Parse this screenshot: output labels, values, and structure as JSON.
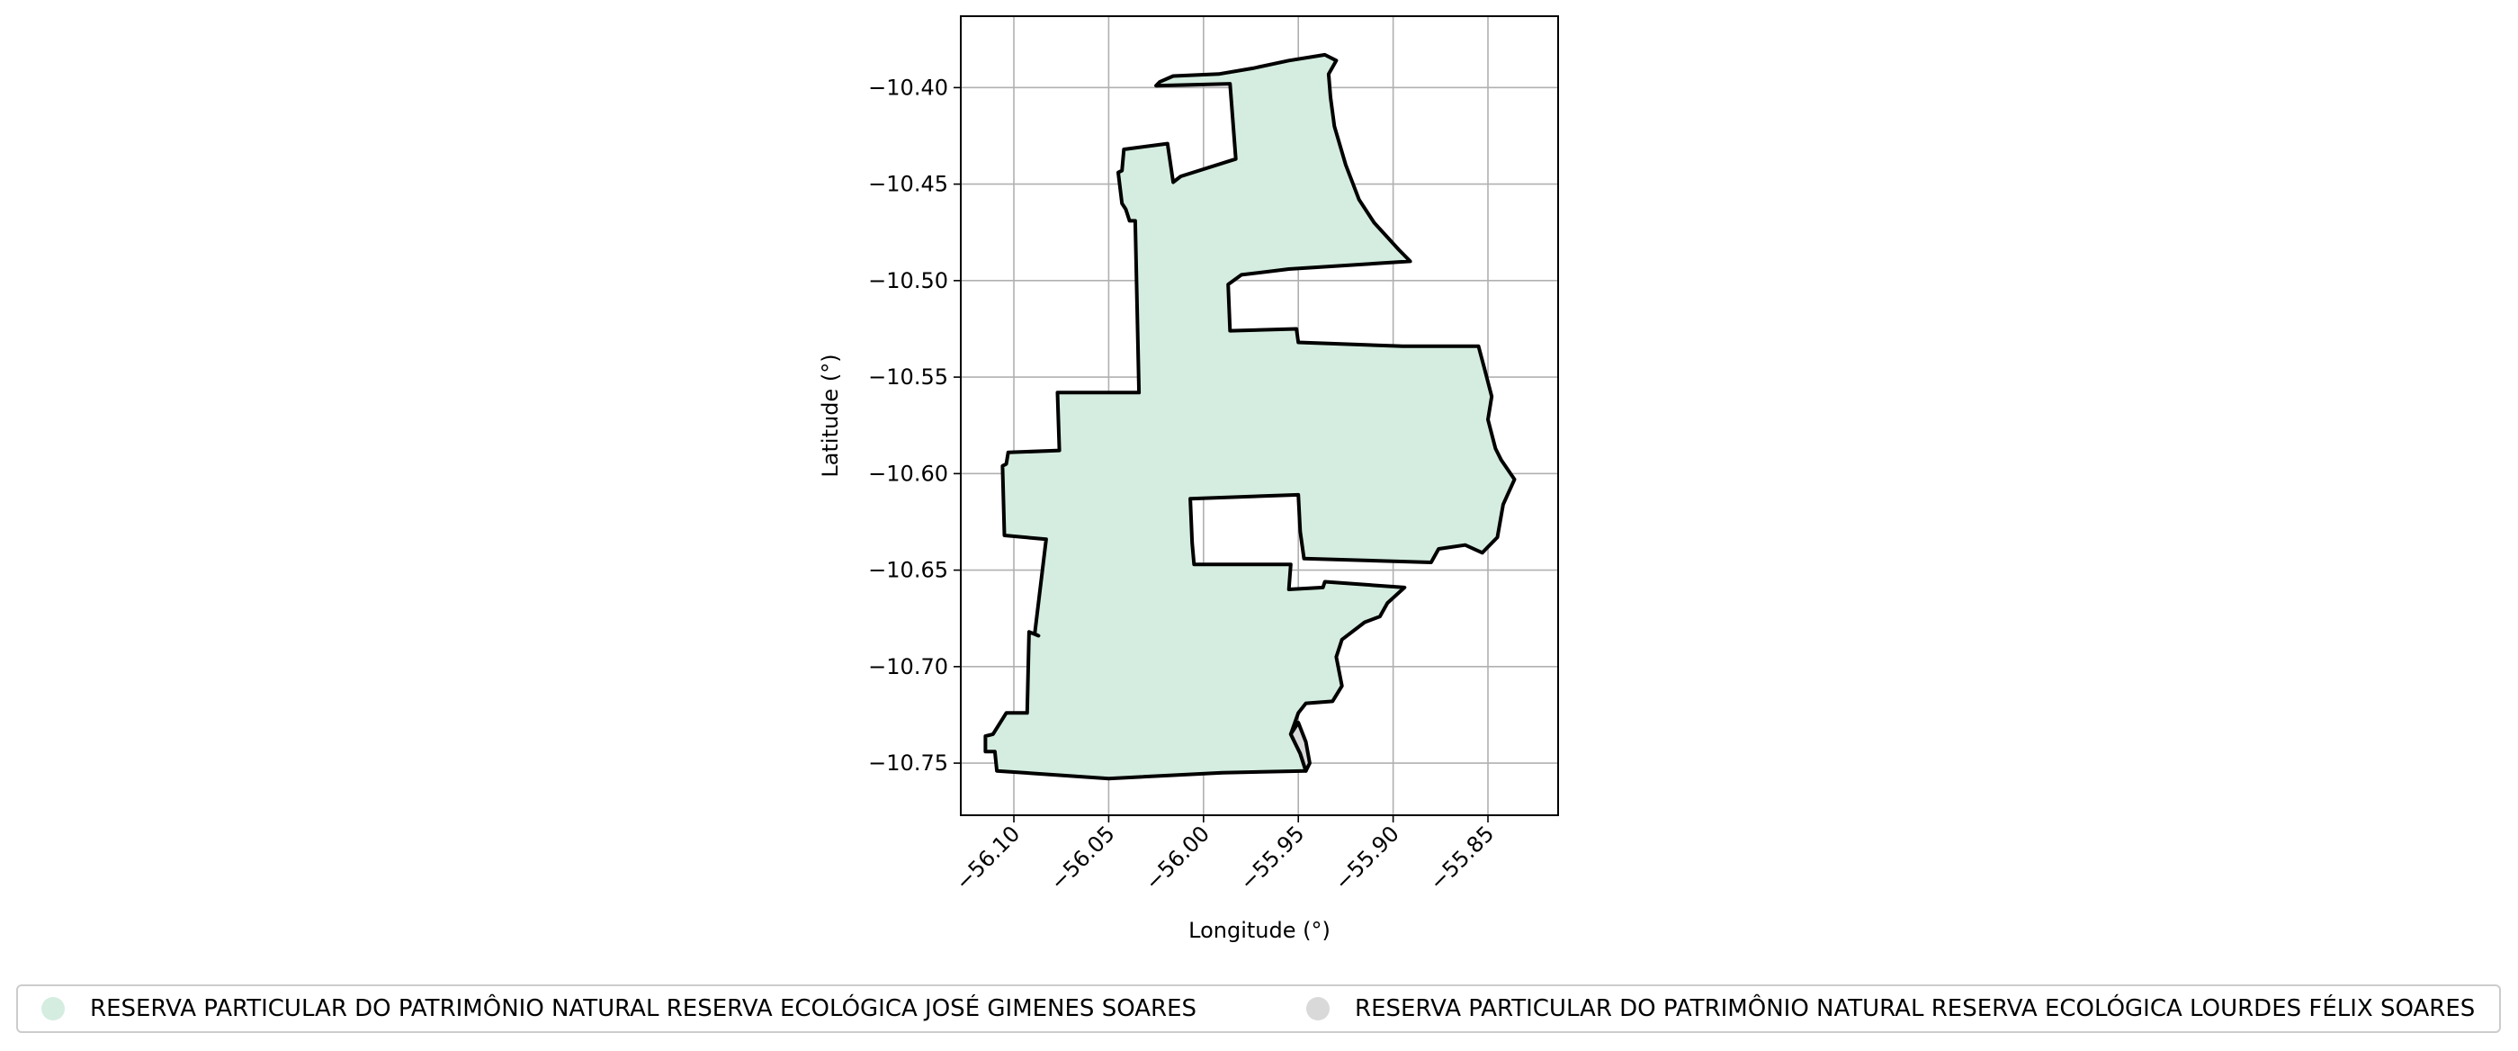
{
  "chart_data": {
    "type": "map",
    "title": "",
    "xlabel": "Longitude (°)",
    "ylabel": "Latitude (°)",
    "xlim": [
      -56.128,
      -55.813
    ],
    "ylim": [
      -10.777,
      -10.363
    ],
    "grid": true,
    "xticks": [
      -56.1,
      -56.05,
      -56.0,
      -55.95,
      -55.9,
      -55.85
    ],
    "xtick_labels": [
      "−56.10",
      "−56.05",
      "−56.00",
      "−55.95",
      "−55.90",
      "−55.85"
    ],
    "yticks": [
      -10.4,
      -10.45,
      -10.5,
      -10.55,
      -10.6,
      -10.65,
      -10.7,
      -10.75
    ],
    "ytick_labels": [
      "−10.40",
      "−10.45",
      "−10.50",
      "−10.55",
      "−10.60",
      "−10.65",
      "−10.70",
      "−10.75"
    ],
    "legend_position": "bottom",
    "series": [
      {
        "name": "RESERVA PARTICULAR DO PATRIMÔNIO NATURAL RESERVA ECOLÓGICA JOSÉ GIMENES SOARES",
        "color": "#d4ede0",
        "outline": "#000000",
        "lonlat": [
          [
            -56.025,
            -10.399
          ],
          [
            -55.986,
            -10.398
          ],
          [
            -55.983,
            -10.437
          ],
          [
            -56.012,
            -10.446
          ],
          [
            -56.016,
            -10.449
          ],
          [
            -56.019,
            -10.429
          ],
          [
            -56.042,
            -10.432
          ],
          [
            -56.043,
            -10.443
          ],
          [
            -56.045,
            -10.444
          ],
          [
            -56.043,
            -10.46
          ],
          [
            -56.041,
            -10.463
          ],
          [
            -56.039,
            -10.469
          ],
          [
            -56.036,
            -10.469
          ],
          [
            -56.034,
            -10.558
          ],
          [
            -56.077,
            -10.558
          ],
          [
            -56.076,
            -10.588
          ],
          [
            -56.103,
            -10.589
          ],
          [
            -56.104,
            -10.595
          ],
          [
            -56.106,
            -10.596
          ],
          [
            -56.105,
            -10.632
          ],
          [
            -56.083,
            -10.634
          ],
          [
            -56.089,
            -10.683
          ],
          [
            -56.087,
            -10.684
          ],
          [
            -56.092,
            -10.682
          ],
          [
            -56.093,
            -10.724
          ],
          [
            -56.104,
            -10.724
          ],
          [
            -56.111,
            -10.735
          ],
          [
            -56.115,
            -10.736
          ],
          [
            -56.115,
            -10.744
          ],
          [
            -56.11,
            -10.744
          ],
          [
            -56.109,
            -10.754
          ],
          [
            -56.05,
            -10.758
          ],
          [
            -55.99,
            -10.755
          ],
          [
            -55.946,
            -10.754
          ],
          [
            -55.949,
            -10.745
          ],
          [
            -55.954,
            -10.735
          ],
          [
            -55.95,
            -10.724
          ],
          [
            -55.946,
            -10.719
          ],
          [
            -55.932,
            -10.718
          ],
          [
            -55.927,
            -10.71
          ],
          [
            -55.93,
            -10.695
          ],
          [
            -55.927,
            -10.686
          ],
          [
            -55.915,
            -10.677
          ],
          [
            -55.907,
            -10.674
          ],
          [
            -55.903,
            -10.667
          ],
          [
            -55.894,
            -10.659
          ],
          [
            -55.936,
            -10.656
          ],
          [
            -55.937,
            -10.659
          ],
          [
            -55.955,
            -10.66
          ],
          [
            -55.954,
            -10.647
          ],
          [
            -56.005,
            -10.647
          ],
          [
            -56.006,
            -10.636
          ],
          [
            -56.007,
            -10.613
          ],
          [
            -55.95,
            -10.611
          ],
          [
            -55.949,
            -10.63
          ],
          [
            -55.947,
            -10.644
          ],
          [
            -55.88,
            -10.646
          ],
          [
            -55.876,
            -10.639
          ],
          [
            -55.862,
            -10.637
          ],
          [
            -55.853,
            -10.641
          ],
          [
            -55.845,
            -10.633
          ],
          [
            -55.842,
            -10.616
          ],
          [
            -55.836,
            -10.603
          ],
          [
            -55.843,
            -10.593
          ],
          [
            -55.846,
            -10.587
          ],
          [
            -55.85,
            -10.572
          ],
          [
            -55.848,
            -10.56
          ],
          [
            -55.852,
            -10.545
          ],
          [
            -55.855,
            -10.534
          ],
          [
            -55.895,
            -10.534
          ],
          [
            -55.95,
            -10.532
          ],
          [
            -55.951,
            -10.525
          ],
          [
            -55.986,
            -10.526
          ],
          [
            -55.987,
            -10.502
          ],
          [
            -55.98,
            -10.497
          ],
          [
            -55.955,
            -10.494
          ],
          [
            -55.891,
            -10.49
          ],
          [
            -55.897,
            -10.484
          ],
          [
            -55.91,
            -10.47
          ],
          [
            -55.918,
            -10.458
          ],
          [
            -55.925,
            -10.44
          ],
          [
            -55.931,
            -10.42
          ],
          [
            -55.933,
            -10.405
          ],
          [
            -55.934,
            -10.393
          ],
          [
            -55.93,
            -10.386
          ],
          [
            -55.936,
            -10.383
          ],
          [
            -55.955,
            -10.386
          ],
          [
            -55.974,
            -10.39
          ],
          [
            -55.992,
            -10.393
          ],
          [
            -56.016,
            -10.394
          ],
          [
            -56.023,
            -10.397
          ],
          [
            -56.025,
            -10.399
          ]
        ]
      },
      {
        "name": "RESERVA PARTICULAR DO PATRIMÔNIO NATURAL RESERVA ECOLÓGICA LOURDES FÉLIX SOARES",
        "color": "#d9d9d9",
        "outline": "#000000",
        "lonlat": [
          [
            -55.95,
            -10.729
          ],
          [
            -55.946,
            -10.739
          ],
          [
            -55.944,
            -10.75
          ],
          [
            -55.946,
            -10.754
          ],
          [
            -55.949,
            -10.745
          ],
          [
            -55.954,
            -10.735
          ],
          [
            -55.95,
            -10.729
          ]
        ]
      }
    ]
  }
}
